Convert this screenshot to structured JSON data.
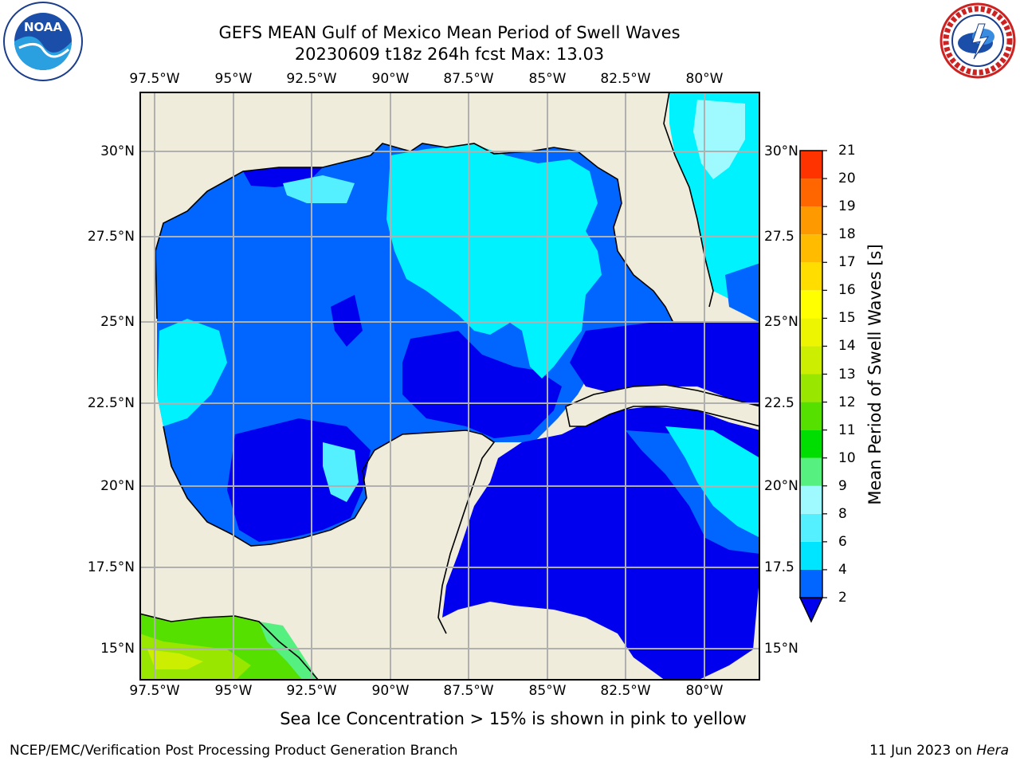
{
  "header": {
    "title": "GEFS MEAN Gulf of Mexico Mean Period of Swell Waves",
    "subtitle": "20230609 t18z 264h fcst   Max: 13.03"
  },
  "map": {
    "lon_labels": [
      "97.5°W",
      "95°W",
      "92.5°W",
      "90°W",
      "87.5°W",
      "85°W",
      "82.5°W",
      "80°W"
    ],
    "lat_labels_left": [
      "30°N",
      "27.5°N",
      "25°N",
      "22.5°N",
      "20°N",
      "17.5°N",
      "15°N"
    ],
    "lat_labels_right": [
      "30°N",
      "27.5",
      "25°N",
      "22.5",
      "20°N",
      "17.5",
      "15°N"
    ],
    "land_color": "#efecdc",
    "grid_color": "#b0b0b0"
  },
  "colorbar": {
    "title": "Mean Period of Swell Waves [s]",
    "levels": [
      "2",
      "4",
      "6",
      "8",
      "9",
      "10",
      "11",
      "12",
      "13",
      "14",
      "15",
      "16",
      "17",
      "18",
      "19",
      "20",
      "21"
    ],
    "colors": [
      "#0066ff",
      "#00e5ff",
      "#55f0ff",
      "#9ffaff",
      "#55f080",
      "#00dd00",
      "#55e000",
      "#99e600",
      "#ccee00",
      "#eef500",
      "#ffff00",
      "#ffdd00",
      "#ffbb00",
      "#ff9900",
      "#ff6600",
      "#ff3300",
      "#ff0000"
    ],
    "under_color": "#0000ee"
  },
  "note": "Sea Ice Concentration > 15% is shown in pink to yellow",
  "footer": {
    "left": "NCEP/EMC/Verification Post Processing Product Generation Branch",
    "date": "11 Jun 2023 on ",
    "machine": "Hera"
  },
  "logos": {
    "noaa_text": "NOAA",
    "nws_text": "NATIONAL WEATHER SERVICE"
  }
}
